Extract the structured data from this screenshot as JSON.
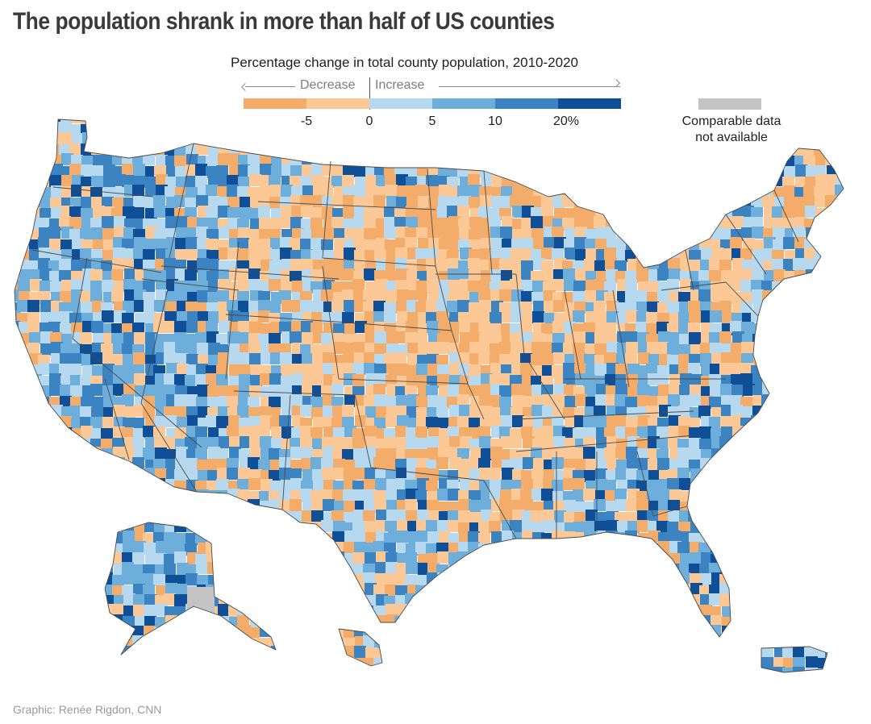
{
  "title": "The population shrank in more than half of US counties",
  "subtitle": "Percentage change in total county population, 2010-2020",
  "legend": {
    "decrease_label": "Decrease",
    "increase_label": "Increase",
    "bins": [
      {
        "color": "#f4ac6b"
      },
      {
        "color": "#fcc996"
      },
      {
        "color": "#b6d9ef"
      },
      {
        "color": "#6daedb"
      },
      {
        "color": "#3b84c1"
      },
      {
        "color": "#0f4f97"
      }
    ],
    "ticks": [
      "-5",
      "0",
      "5",
      "10",
      "20%"
    ]
  },
  "not_available": {
    "label_line1": "Comparable data",
    "label_line2": "not available",
    "color": "#c4c4c4"
  },
  "credit": "Graphic: Renée Rigdon, CNN",
  "colors": {
    "strong_decrease": "#f4ac6b",
    "decrease": "#fcc996",
    "increase_small": "#b6d9ef",
    "increase": "#6daedb",
    "increase_large": "#3b84c1",
    "increase_20plus": "#0f4f97",
    "no_data": "#c4c4c4",
    "state_border": "#4a4a4a"
  },
  "map_regions": [
    {
      "name": "Contiguous United States"
    },
    {
      "name": "Alaska"
    },
    {
      "name": "Hawaii"
    },
    {
      "name": "Puerto Rico"
    }
  ]
}
